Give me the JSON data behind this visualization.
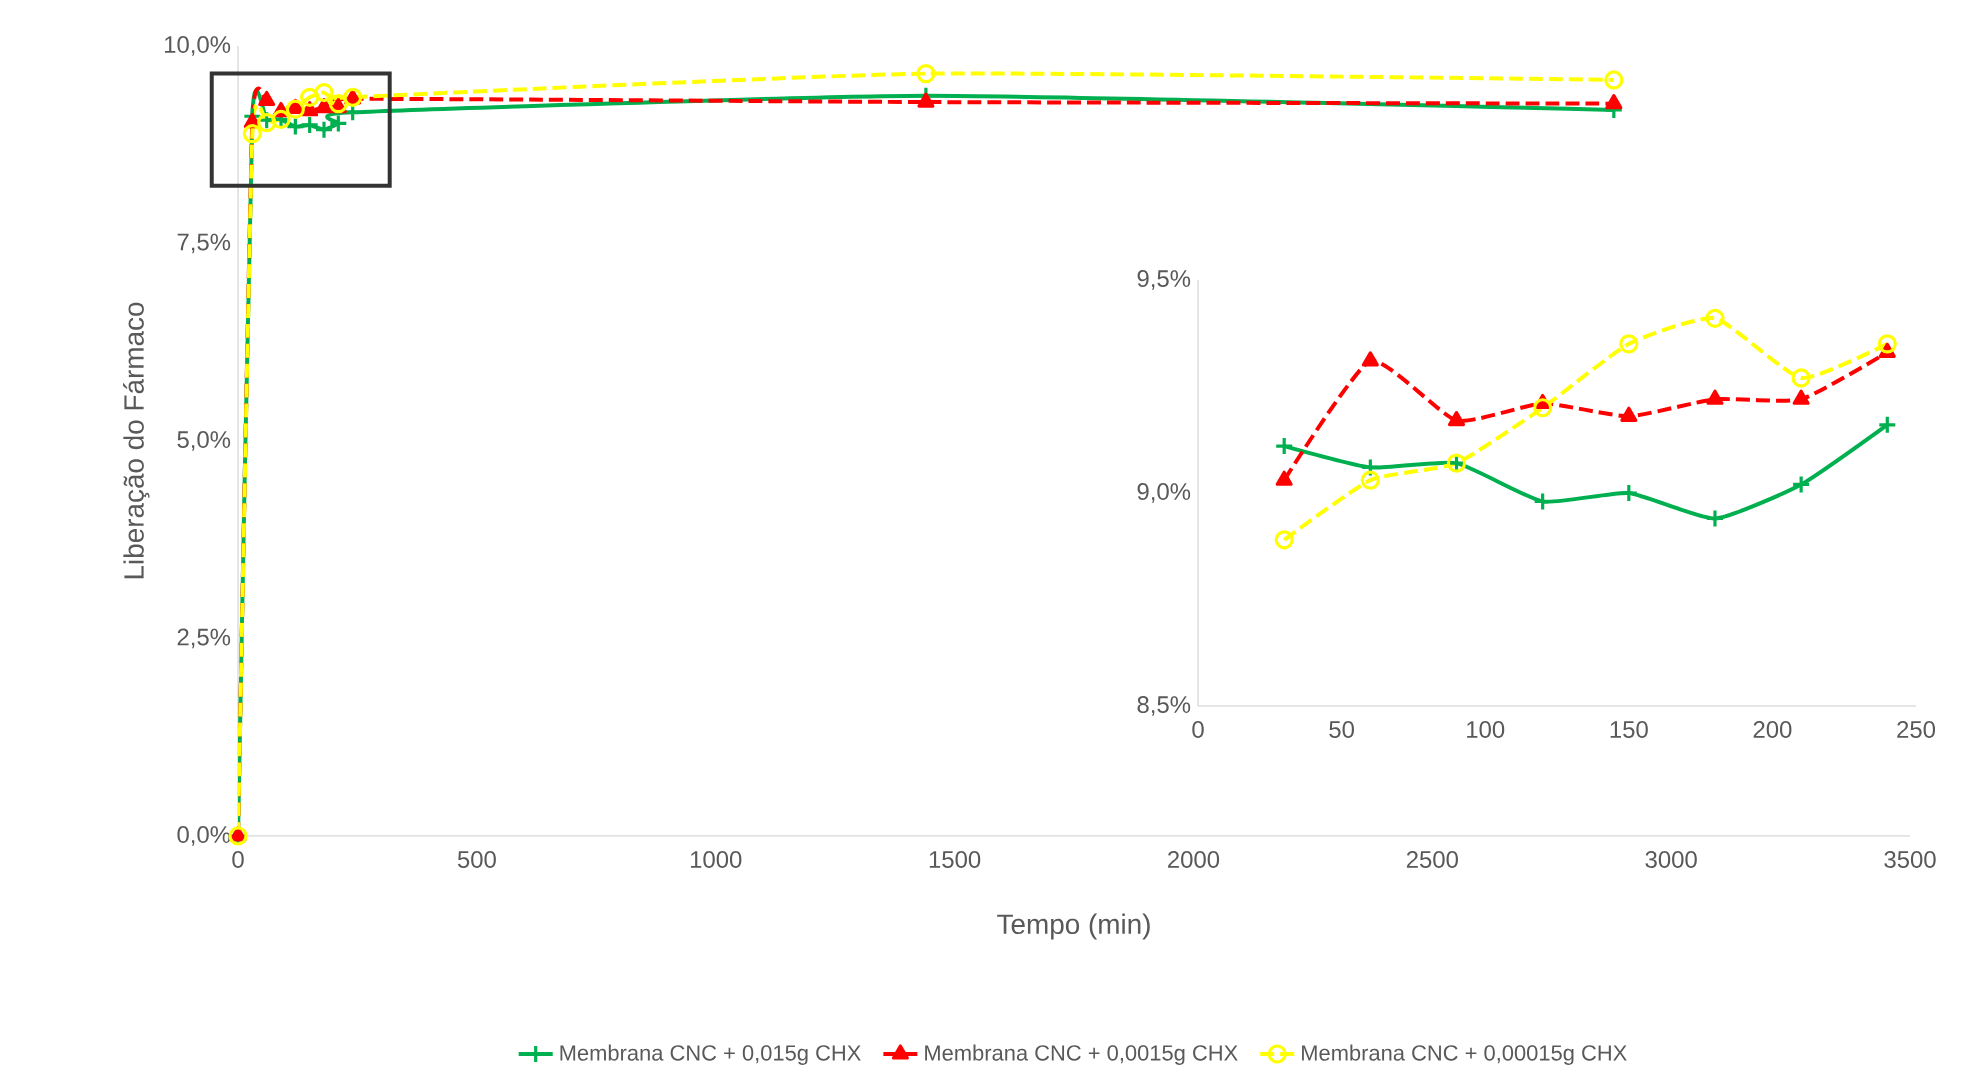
{
  "chart_data": [
    {
      "type": "line",
      "xlabel": "Tempo (min)",
      "ylabel": "Liberação do Fármaco",
      "xlim": [
        0,
        3500
      ],
      "xticks": [
        0,
        500,
        1000,
        1500,
        2000,
        2500,
        3000,
        3500
      ],
      "ylim": [
        0,
        10
      ],
      "yticks": [
        {
          "value": 0,
          "label": "0,0%"
        },
        {
          "value": 2.5,
          "label": "2,5%"
        },
        {
          "value": 5,
          "label": "5,0%"
        },
        {
          "value": 7.5,
          "label": "7,5%"
        },
        {
          "value": 10,
          "label": "10,0%"
        }
      ],
      "x": [
        0,
        30,
        60,
        90,
        120,
        150,
        180,
        210,
        240,
        1440,
        2880
      ],
      "legend": "bottom",
      "series": [
        {
          "name": "Membrana CNC + 0,015g CHX",
          "color": "#00b050",
          "marker": "cross",
          "line_style": "solid",
          "values": [
            0,
            9.11,
            9.06,
            9.07,
            8.98,
            9.0,
            8.94,
            9.02,
            9.16,
            9.37,
            9.19
          ]
        },
        {
          "name": "Membrana CNC + 0,0015g CHX",
          "color": "#ff0000",
          "marker": "triangle",
          "line_style": "dashed",
          "values": [
            0,
            9.03,
            9.31,
            9.17,
            9.21,
            9.18,
            9.22,
            9.22,
            9.33,
            9.29,
            9.27
          ]
        },
        {
          "name": "Membrana CNC + 0,00015g CHX",
          "color": "#ffff00",
          "marker": "circle",
          "line_style": "dashed",
          "values": [
            0,
            8.89,
            9.03,
            9.07,
            9.2,
            9.35,
            9.41,
            9.27,
            9.35,
            9.65,
            9.57
          ]
        }
      ]
    },
    {
      "type": "line",
      "xlim": [
        0,
        250
      ],
      "xticks": [
        0,
        50,
        100,
        150,
        200,
        250
      ],
      "ylim": [
        8.5,
        9.5
      ],
      "yticks": [
        {
          "value": 8.5,
          "label": "8,5%"
        },
        {
          "value": 9,
          "label": "9,0%"
        },
        {
          "value": 9.5,
          "label": "9,5%"
        }
      ],
      "x": [
        30,
        60,
        90,
        120,
        150,
        180,
        210,
        240
      ],
      "series": [
        {
          "color": "#00b050",
          "marker": "cross",
          "line_style": "solid",
          "values": [
            9.11,
            9.06,
            9.07,
            8.98,
            9.0,
            8.94,
            9.02,
            9.16
          ]
        },
        {
          "color": "#ff0000",
          "marker": "triangle",
          "line_style": "dashed",
          "values": [
            9.03,
            9.31,
            9.17,
            9.21,
            9.18,
            9.22,
            9.22,
            9.33
          ]
        },
        {
          "color": "#ffff00",
          "marker": "circle",
          "line_style": "dashed",
          "values": [
            8.89,
            9.03,
            9.07,
            9.2,
            9.35,
            9.41,
            9.27,
            9.35
          ]
        }
      ]
    }
  ]
}
